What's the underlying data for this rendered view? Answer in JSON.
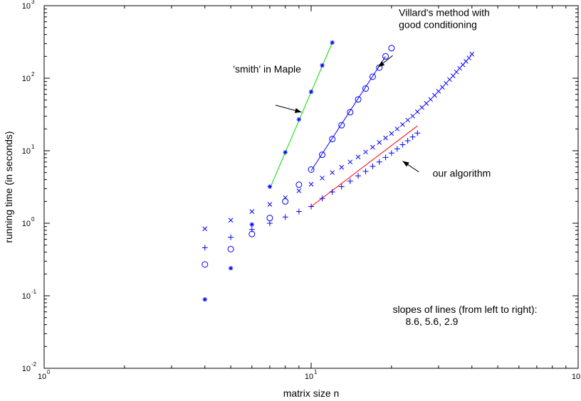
{
  "chart_data": {
    "type": "scatter",
    "title": "",
    "xlabel": "matrix size n",
    "ylabel": "running time (in seconds)",
    "x_scale": "log",
    "y_scale": "log",
    "xlim": [
      1,
      100
    ],
    "ylim": [
      0.01,
      1000
    ],
    "grid": false,
    "x_ticks": [
      {
        "base": "10",
        "exp": "0",
        "value": 1
      },
      {
        "base": "10",
        "exp": "1",
        "value": 10
      },
      {
        "base": "10",
        "exp": "2",
        "value": 100
      }
    ],
    "y_ticks": [
      {
        "base": "10",
        "exp": "-2",
        "value": 0.01
      },
      {
        "base": "10",
        "exp": "-1",
        "value": 0.1
      },
      {
        "base": "10",
        "exp": "0",
        "value": 1
      },
      {
        "base": "10",
        "exp": "1",
        "value": 10
      },
      {
        "base": "10",
        "exp": "2",
        "value": 100
      },
      {
        "base": "10",
        "exp": "3",
        "value": 1000
      }
    ],
    "series": [
      {
        "marker": "star",
        "color": "#0000ff",
        "x": [
          4,
          5,
          6,
          7,
          8,
          9,
          10,
          11,
          12
        ],
        "y": [
          0.089,
          0.24,
          0.96,
          3.2,
          9.5,
          27,
          65,
          150,
          310
        ]
      },
      {
        "marker": "circle",
        "color": "#0000ff",
        "x": [
          4,
          5,
          6,
          7,
          8,
          9,
          10,
          11,
          12,
          13,
          14,
          15,
          16,
          17,
          18,
          19,
          20
        ],
        "y": [
          0.27,
          0.44,
          0.71,
          1.18,
          2.0,
          3.4,
          5.5,
          8.8,
          14.5,
          22.5,
          34,
          51,
          72,
          105,
          140,
          200,
          260
        ]
      },
      {
        "marker": "x",
        "color": "#0000ff",
        "x": [
          4,
          5,
          6,
          7,
          8,
          9,
          10,
          11,
          12,
          13,
          14,
          15,
          16,
          17,
          18,
          19,
          20,
          21,
          22,
          23,
          24,
          25,
          26,
          27,
          28,
          29,
          30,
          31,
          32,
          33,
          34,
          35,
          36,
          37,
          38,
          39,
          40
        ],
        "y": [
          0.84,
          1.1,
          1.45,
          1.82,
          2.25,
          2.8,
          3.45,
          4.2,
          5.0,
          5.9,
          7.0,
          8.2,
          9.6,
          11.2,
          13.0,
          15.0,
          17.3,
          20,
          23,
          26.5,
          30,
          34.5,
          39.5,
          45,
          51,
          58,
          66,
          75,
          85,
          96,
          108,
          122,
          137,
          153,
          171,
          190,
          215
        ]
      },
      {
        "marker": "plus",
        "color": "#0000ff",
        "x": [
          4,
          5,
          6,
          7,
          8,
          9,
          10,
          11,
          12,
          13,
          14,
          15,
          16,
          17,
          18,
          19,
          20,
          21,
          22,
          23,
          24,
          25
        ],
        "y": [
          0.46,
          0.64,
          0.82,
          1.0,
          1.22,
          1.45,
          1.7,
          2.2,
          2.7,
          3.2,
          3.8,
          4.5,
          5.2,
          6.1,
          7.0,
          8.1,
          9.3,
          10.6,
          12.1,
          13.7,
          15.5,
          17.5
        ]
      }
    ],
    "fit_lines": [
      {
        "color": "#00dd00",
        "x": [
          7,
          12
        ],
        "y": [
          3.0,
          310
        ]
      },
      {
        "color": "#0000ff",
        "x": [
          10,
          19
        ],
        "y": [
          5.3,
          200
        ]
      },
      {
        "color": "#ff0000",
        "x": [
          10,
          25
        ],
        "y": [
          1.7,
          22
        ]
      }
    ],
    "annotations": [
      {
        "id": "smith",
        "text": "'smith' in Maple",
        "lines": [
          "'smith' in Maple"
        ],
        "arrow_to": [
          9.2,
          34
        ],
        "arrow_from": [
          7.35,
          42.5
        ],
        "text_at": [
          5.1,
          120
        ]
      },
      {
        "id": "villard",
        "text": "Villard's method with good conditioning",
        "lines": [
          "Villard's method with",
          "good conditioning"
        ],
        "arrow_to": [
          17.8,
          142
        ],
        "arrow_from": [
          20.2,
          205
        ],
        "text_at": [
          21.3,
          720
        ]
      },
      {
        "id": "ours",
        "text": "our algorithm",
        "lines": [
          "our algorithm"
        ],
        "arrow_to": [
          22.0,
          7.2
        ],
        "arrow_from": [
          25.3,
          5.1
        ],
        "text_at": [
          28.5,
          4.4
        ]
      },
      {
        "id": "slopes",
        "text": "slopes of lines (from left to right): 8.6, 5.6, 2.9",
        "lines": [
          "slopes of lines (from left to right):",
          "8.6, 5.6, 2.9"
        ],
        "text_at": [
          20.2,
          0.058
        ]
      }
    ]
  }
}
